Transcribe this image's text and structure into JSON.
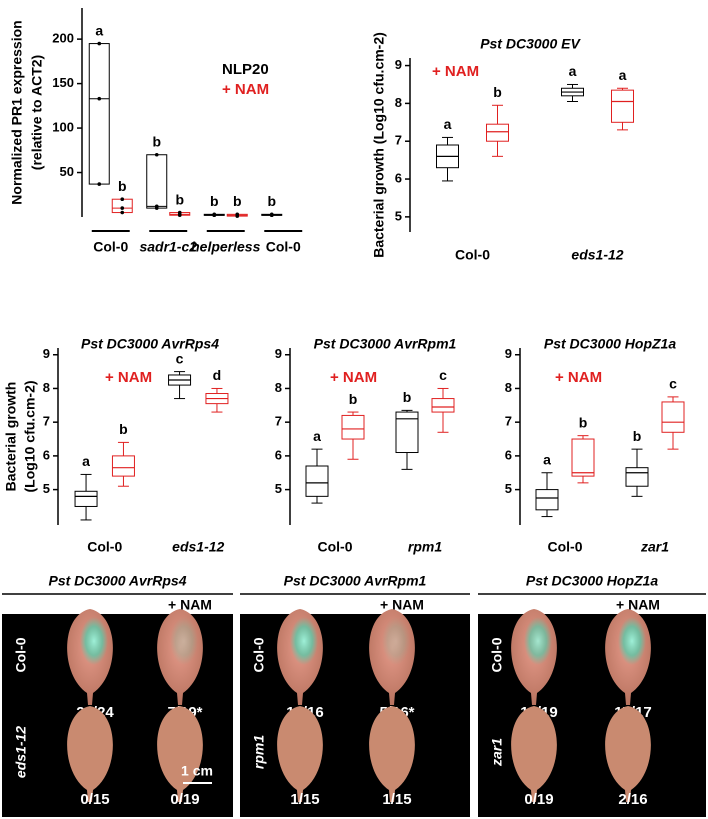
{
  "chart_data": [
    {
      "type": "range",
      "categories": [
        "Col-0",
        "sadr1-c2",
        "helperless",
        "Col-0"
      ],
      "ylabel": [
        "Normalized PR1 expression",
        "(relative to ACT2)"
      ],
      "ylim": [
        0,
        235
      ],
      "yticks": [
        50,
        100,
        150,
        200
      ],
      "category_underline": true,
      "series": [
        {
          "name": "NLP20",
          "color": "#000000",
          "values": [
            [
              37,
              133,
              195
            ],
            [
              10,
              12,
              70
            ],
            [
              2,
              2,
              3
            ],
            [
              2,
              2,
              3
            ]
          ],
          "letters": [
            "a",
            "b",
            "b",
            "b"
          ]
        },
        {
          "name": "+ NAM",
          "color": "#e02020",
          "values": [
            [
              5,
              10,
              20
            ],
            [
              2,
              3,
              5
            ],
            [
              1,
              2,
              3
            ],
            null
          ],
          "letters": [
            "b",
            "b",
            "b",
            null
          ]
        }
      ]
    },
    {
      "type": "box",
      "title": "Pst DC3000 EV",
      "categories": [
        "Col-0",
        "eds1-12"
      ],
      "ylabel": "Bacterial growth (Log10 cfu.cm-2)",
      "ylim": [
        4.6,
        9.2
      ],
      "yticks": [
        5,
        6,
        7,
        8,
        9
      ],
      "series": [
        {
          "color": "#000000",
          "values": [
            [
              5.95,
              6.3,
              6.6,
              6.9,
              7.1
            ],
            [
              8.05,
              8.2,
              8.3,
              8.4,
              8.5
            ]
          ],
          "letters": [
            "a",
            "a"
          ]
        },
        {
          "name": "+ NAM",
          "color": "#e02020",
          "values": [
            [
              6.6,
              7.0,
              7.25,
              7.45,
              7.95
            ],
            [
              7.3,
              7.5,
              8.05,
              8.35,
              8.4
            ]
          ],
          "letters": [
            "b",
            "a"
          ]
        }
      ]
    },
    {
      "type": "box",
      "title": "Pst DC3000 AvrRps4",
      "categories": [
        "Col-0",
        "eds1-12"
      ],
      "ylabel": [
        "Bacterial growth",
        "(Log10 cfu.cm-2)"
      ],
      "ylim": [
        3.95,
        9.2
      ],
      "yticks": [
        5,
        6,
        7,
        8,
        9
      ],
      "series": [
        {
          "color": "#000000",
          "values": [
            [
              4.1,
              4.5,
              4.8,
              4.95,
              5.45
            ],
            [
              7.7,
              8.1,
              8.25,
              8.4,
              8.5
            ]
          ],
          "letters": [
            "a",
            "c"
          ]
        },
        {
          "name": "+ NAM",
          "color": "#e02020",
          "values": [
            [
              5.1,
              5.4,
              5.65,
              6.0,
              6.4
            ],
            [
              7.3,
              7.55,
              7.7,
              7.85,
              8.0
            ]
          ],
          "letters": [
            "b",
            "d"
          ]
        }
      ]
    },
    {
      "type": "box",
      "title": "Pst DC3000 AvrRpm1",
      "categories": [
        "Col-0",
        "rpm1"
      ],
      "ylim": [
        3.95,
        9.2
      ],
      "yticks": [
        5,
        6,
        7,
        8,
        9
      ],
      "series": [
        {
          "color": "#000000",
          "values": [
            [
              4.6,
              4.8,
              5.2,
              5.7,
              6.2
            ],
            [
              5.6,
              6.1,
              7.1,
              7.3,
              7.35
            ]
          ],
          "letters": [
            "a",
            "b"
          ]
        },
        {
          "name": "+ NAM",
          "color": "#e02020",
          "values": [
            [
              5.9,
              6.5,
              6.8,
              7.2,
              7.3
            ],
            [
              6.7,
              7.3,
              7.45,
              7.7,
              8.0
            ]
          ],
          "letters": [
            "b",
            "c"
          ]
        }
      ]
    },
    {
      "type": "box",
      "title": "Pst DC3000 HopZ1a",
      "categories": [
        "Col-0",
        "zar1"
      ],
      "ylim": [
        3.95,
        9.2
      ],
      "yticks": [
        5,
        6,
        7,
        8,
        9
      ],
      "series": [
        {
          "color": "#000000",
          "values": [
            [
              4.2,
              4.4,
              4.75,
              5.0,
              5.5
            ],
            [
              4.8,
              5.1,
              5.5,
              5.65,
              6.2
            ]
          ],
          "letters": [
            "a",
            "b"
          ]
        },
        {
          "name": "+ NAM",
          "color": "#e02020",
          "values": [
            [
              5.2,
              5.4,
              5.5,
              6.5,
              6.6
            ],
            [
              6.2,
              6.7,
              7.0,
              7.6,
              7.75
            ]
          ],
          "letters": [
            "b",
            "c"
          ]
        }
      ]
    }
  ],
  "leaf_panel": {
    "scale": "1 cm",
    "panels": [
      {
        "title": "Pst DC3000 AvrRps4",
        "treatment": "+ NAM",
        "rows": [
          {
            "label": "Col-0",
            "counts": [
              "20/24",
              "7/19*"
            ]
          },
          {
            "label": "eds1-12",
            "counts": [
              "0/15",
              "0/19"
            ]
          }
        ]
      },
      {
        "title": "Pst DC3000 AvrRpm1",
        "treatment": "+ NAM",
        "rows": [
          {
            "label": "Col-0",
            "counts": [
              "16/16",
              "5/16*"
            ]
          },
          {
            "label": "rpm1",
            "counts": [
              "1/15",
              "1/15"
            ]
          }
        ]
      },
      {
        "title": "Pst DC3000 HopZ1a",
        "treatment": "+ NAM",
        "rows": [
          {
            "label": "Col-0",
            "counts": [
              "19/19",
              "17/17"
            ]
          },
          {
            "label": "zar1",
            "counts": [
              "0/19",
              "2/16"
            ]
          }
        ]
      }
    ]
  }
}
